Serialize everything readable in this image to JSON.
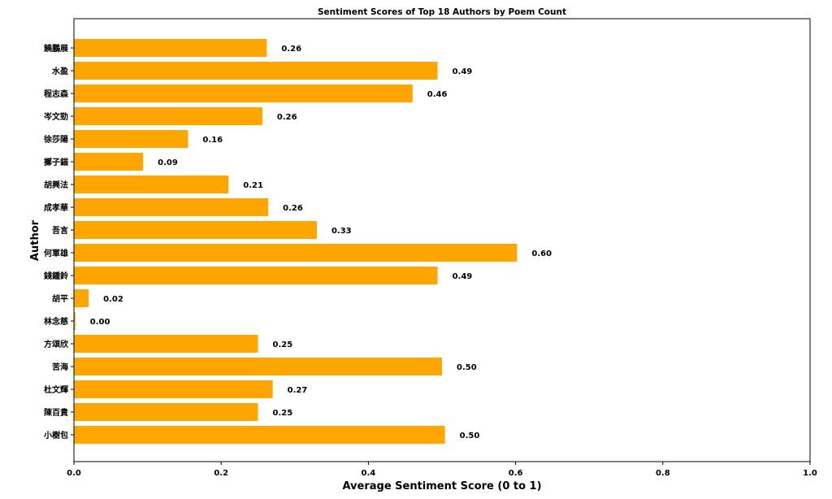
{
  "chart_data": {
    "type": "bar",
    "orientation": "horizontal",
    "title": "Sentiment Scores of Top 18 Authors by Poem Count",
    "xlabel": "Average Sentiment Score (0 to 1)",
    "ylabel": "Author",
    "xlim": [
      0,
      1
    ],
    "xticks": [
      "0.0",
      "0.2",
      "0.4",
      "0.6",
      "0.8",
      "1.0"
    ],
    "bar_color": "#FFA500",
    "grid": false,
    "categories": [
      "小樹包",
      "陳百貴",
      "杜文輝",
      "苦海",
      "方頌欣",
      "林念慈",
      "胡平",
      "錢鍾鈴",
      "何軍雄",
      "吾言",
      "成孝華",
      "胡興法",
      "擲子錨",
      "徐莎陽",
      "岑文勁",
      "程志森",
      "水盈",
      "饒鵬展"
    ],
    "values": [
      0.504,
      0.25,
      0.27,
      0.5,
      0.25,
      0.002,
      0.02,
      0.494,
      0.602,
      0.33,
      0.264,
      0.21,
      0.094,
      0.155,
      0.256,
      0.46,
      0.494,
      0.262
    ],
    "value_labels": [
      "0.50",
      "0.25",
      "0.27",
      "0.50",
      "0.25",
      "0.00",
      "0.02",
      "0.49",
      "0.60",
      "0.33",
      "0.26",
      "0.21",
      "0.09",
      "0.16",
      "0.26",
      "0.46",
      "0.49",
      "0.26"
    ]
  }
}
